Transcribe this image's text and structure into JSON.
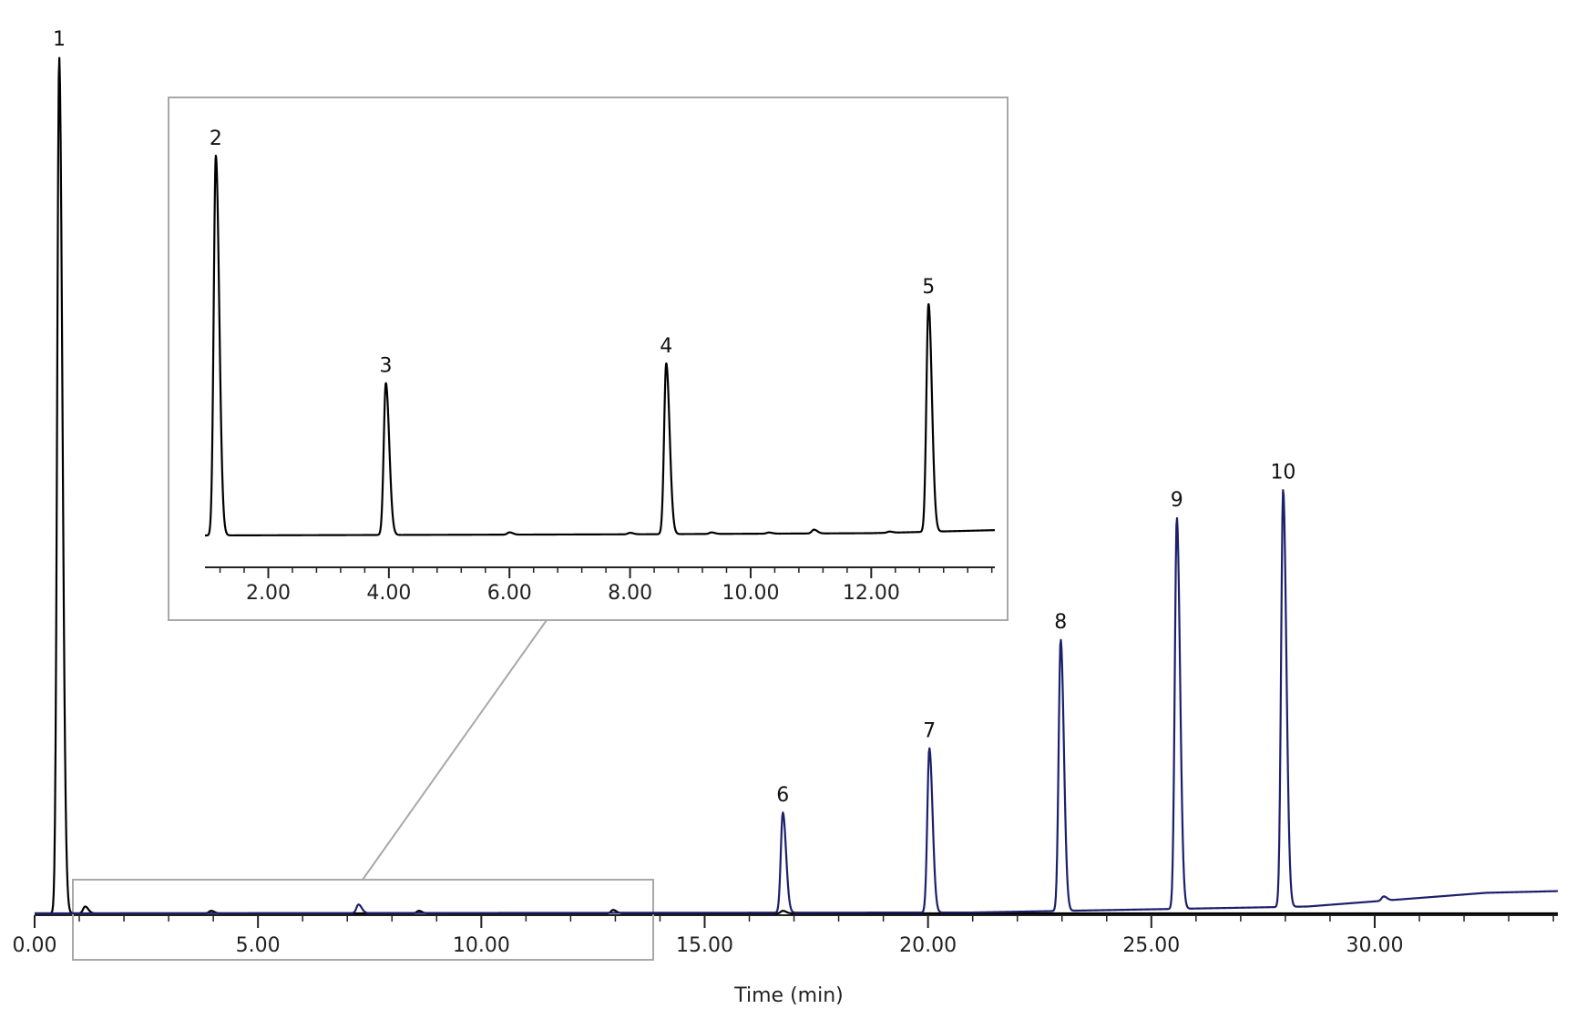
{
  "chart_data": [
    {
      "type": "line",
      "name": "main",
      "xlabel": "Time (min)",
      "ylabel": "",
      "xlim": [
        0,
        34.1
      ],
      "ylim": [
        0,
        100
      ],
      "grid": false,
      "x_tick_labels": [
        "0.00",
        "5.00",
        "10.00",
        "15.00",
        "20.00",
        "25.00",
        "30.00"
      ],
      "x_ticks": [
        0,
        5,
        10,
        15,
        20,
        25,
        30
      ],
      "series": [
        {
          "color": "#000000",
          "peaks": [
            {
              "label": "1",
              "x": 0.55,
              "y": 100
            }
          ],
          "minor_peaks": [
            [
              1.13,
              0.8
            ],
            [
              3.95,
              0.3
            ],
            [
              8.6,
              0.3
            ],
            [
              12.95,
              0.4
            ],
            [
              16.75,
              0.3
            ]
          ]
        },
        {
          "color": "#1c1f6b",
          "peaks": [
            {
              "label": "6",
              "x": 16.75,
              "y": 11.7
            },
            {
              "label": "7",
              "x": 20.03,
              "y": 19.2
            },
            {
              "label": "8",
              "x": 22.97,
              "y": 31.7
            },
            {
              "label": "9",
              "x": 25.57,
              "y": 45.7
            },
            {
              "label": "10",
              "x": 27.95,
              "y": 48.7
            }
          ],
          "minor_peaks": [
            [
              7.25,
              1.0
            ],
            [
              30.2,
              0.5
            ]
          ],
          "baseline_drift": [
            [
              0,
              0
            ],
            [
              21.0,
              0.1
            ],
            [
              28.5,
              0.8
            ],
            [
              31.0,
              1.8
            ],
            [
              32.5,
              2.4
            ],
            [
              34.1,
              2.6
            ]
          ]
        }
      ]
    },
    {
      "type": "line",
      "name": "inset",
      "xlim": [
        0.95,
        14.05
      ],
      "ylim": [
        0,
        100
      ],
      "grid": false,
      "x_tick_labels": [
        "2.00",
        "4.00",
        "6.00",
        "8.00",
        "10.00",
        "12.00"
      ],
      "x_ticks": [
        2,
        4,
        6,
        8,
        10,
        12
      ],
      "series": [
        {
          "color": "#000000",
          "peaks": [
            {
              "label": "2",
              "x": 1.13,
              "y": 100
            },
            {
              "label": "3",
              "x": 3.95,
              "y": 40
            },
            {
              "label": "4",
              "x": 8.6,
              "y": 45
            },
            {
              "label": "5",
              "x": 12.95,
              "y": 60
            }
          ],
          "minor_peaks": [
            [
              6.0,
              0.6
            ],
            [
              8.0,
              0.4
            ],
            [
              9.35,
              0.4
            ],
            [
              10.3,
              0.3
            ],
            [
              11.05,
              1.0
            ],
            [
              12.3,
              0.3
            ]
          ],
          "baseline_drift": [
            [
              0.95,
              0
            ],
            [
              8.0,
              0.3
            ],
            [
              12.0,
              0.6
            ],
            [
              14.05,
              1.4
            ]
          ]
        }
      ]
    }
  ]
}
